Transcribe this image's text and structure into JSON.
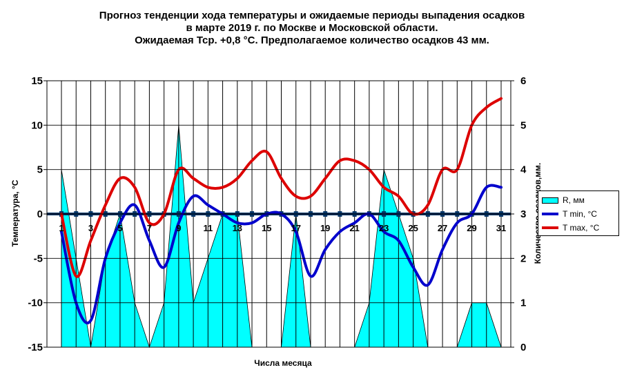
{
  "title": {
    "line1": "Прогноз тенденции хода температуры и ожидаемые периоды выпадения осадков",
    "line2": "в марте 2019 г. по Москве и Московской области.",
    "line3": "Ожидаемая Тср. +0,8 °С. Предполагаемое количество осадков 43 мм."
  },
  "chart_data": {
    "type": "line",
    "xlabel": "Числа месяца",
    "ylabel": "Температура, °С",
    "y2label": "Количество осадков,мм.",
    "x": [
      1,
      2,
      3,
      4,
      5,
      6,
      7,
      8,
      9,
      10,
      11,
      12,
      13,
      14,
      15,
      16,
      17,
      18,
      19,
      20,
      21,
      22,
      23,
      24,
      25,
      26,
      27,
      28,
      29,
      30,
      31
    ],
    "x_tick_labels": [
      "1",
      "3",
      "5",
      "7",
      "9",
      "11",
      "13",
      "15",
      "17",
      "19",
      "21",
      "23",
      "25",
      "27",
      "29",
      "31"
    ],
    "ylim": [
      -15,
      15
    ],
    "y_ticks": [
      -15,
      -10,
      -5,
      0,
      5,
      10,
      15
    ],
    "y_tick_labels": [
      "-15",
      "-10",
      "-5",
      "0",
      "5",
      "10",
      "15"
    ],
    "y2lim": [
      0,
      6
    ],
    "y2_ticks": [
      0,
      1,
      2,
      3,
      4,
      5,
      6
    ],
    "y2_tick_labels": [
      "0",
      "1",
      "2",
      "3",
      "4",
      "5",
      "6"
    ],
    "grid": "vertical",
    "legend_position": "right",
    "series": [
      {
        "name": "R, мм",
        "kind": "area",
        "axis": "right",
        "color": "#00ffff",
        "values": [
          4,
          2,
          0,
          2,
          3,
          1,
          0,
          1,
          5,
          1,
          2,
          3,
          3,
          0,
          0,
          0,
          3,
          0,
          0,
          0,
          0,
          1,
          4,
          3,
          2,
          0,
          0,
          0,
          1,
          1,
          0
        ]
      },
      {
        "name": "T min, °C",
        "kind": "line",
        "axis": "left",
        "color": "#0000cc",
        "values": [
          -2,
          -10,
          -12,
          -5,
          -1,
          1,
          -3,
          -6,
          -1,
          2,
          1,
          0,
          -1,
          -1,
          0,
          0,
          -2,
          -7,
          -4,
          -2,
          -1,
          0,
          -2,
          -3,
          -6,
          -8,
          -4,
          -1,
          0,
          3,
          3
        ]
      },
      {
        "name": "T max, °C",
        "kind": "line",
        "axis": "left",
        "color": "#dd0000",
        "values": [
          0,
          -7,
          -3,
          1,
          4,
          3,
          -1,
          0,
          5,
          4,
          3,
          3,
          4,
          6,
          7,
          4,
          2,
          2,
          4,
          6,
          6,
          5,
          3,
          2,
          0,
          1,
          5,
          5,
          10,
          12,
          13
        ]
      }
    ]
  }
}
